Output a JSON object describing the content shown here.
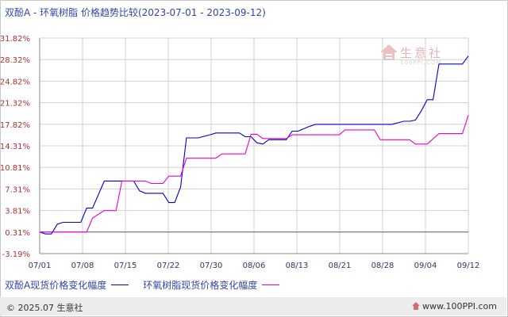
{
  "title": "双酚A - 环氧树脂 价格趋势比较(2023-07-01 - 2023-09-12)",
  "legend": [
    {
      "label": "双酚A现货价格变化幅度",
      "color": "#0000cc"
    },
    {
      "label": "环氧树脂现货价格变化幅度",
      "color": "#ee00cc"
    }
  ],
  "footer": {
    "copyright": "© 2025.07 生意社",
    "url": "www.100PPI.com"
  },
  "logo": {
    "name": "生意社",
    "sub": "100PPI.COM"
  },
  "colors": {
    "grid": "#d0d0d0",
    "axis": "#888888",
    "zero_line": "#666666"
  },
  "chart_data": {
    "type": "line",
    "title": "双酚A - 环氧树脂 价格趋势比较(2023-07-01 - 2023-09-12)",
    "xlabel": "",
    "ylabel": "",
    "x_tick_labels": [
      "07/01",
      "07/08",
      "07/15",
      "07/22",
      "07/30",
      "08/06",
      "08/13",
      "08/21",
      "08/28",
      "09/04",
      "09/12"
    ],
    "y_tick_labels": [
      "31.82%",
      "28.32%",
      "24.82%",
      "21.32%",
      "17.82%",
      "14.31%",
      "10.81%",
      "7.31%",
      "3.81%",
      "0.31%",
      "-3.19%"
    ],
    "y_ticks": [
      31.82,
      28.32,
      24.82,
      21.32,
      17.82,
      14.31,
      10.81,
      7.31,
      3.81,
      0.31,
      -3.19
    ],
    "xlim": [
      "2023-07-01",
      "2023-09-12"
    ],
    "ylim": [
      -3.19,
      31.82
    ],
    "grid": true,
    "legend_position": "bottom",
    "series": [
      {
        "name": "双酚A现货价格变化幅度",
        "color": "#0000cc",
        "points": [
          [
            "2023-07-01",
            0.31
          ],
          [
            "2023-07-02",
            0.0
          ],
          [
            "2023-07-03",
            0.0
          ],
          [
            "2023-07-04",
            1.6
          ],
          [
            "2023-07-05",
            1.9
          ],
          [
            "2023-07-07",
            1.9
          ],
          [
            "2023-07-08",
            1.9
          ],
          [
            "2023-07-09",
            4.2
          ],
          [
            "2023-07-10",
            4.2
          ],
          [
            "2023-07-12",
            8.6
          ],
          [
            "2023-07-15",
            8.6
          ],
          [
            "2023-07-17",
            8.6
          ],
          [
            "2023-07-18",
            7.0
          ],
          [
            "2023-07-19",
            6.6
          ],
          [
            "2023-07-22",
            6.6
          ],
          [
            "2023-07-23",
            5.1
          ],
          [
            "2023-07-24",
            5.1
          ],
          [
            "2023-07-25",
            7.6
          ],
          [
            "2023-07-26",
            15.6
          ],
          [
            "2023-07-28",
            15.6
          ],
          [
            "2023-07-30",
            16.1
          ],
          [
            "2023-07-31",
            16.4
          ],
          [
            "2023-08-04",
            16.4
          ],
          [
            "2023-08-05",
            15.8
          ],
          [
            "2023-08-06",
            15.8
          ],
          [
            "2023-08-07",
            14.8
          ],
          [
            "2023-08-08",
            14.6
          ],
          [
            "2023-08-09",
            15.3
          ],
          [
            "2023-08-12",
            15.3
          ],
          [
            "2023-08-13",
            16.7
          ],
          [
            "2023-08-14",
            16.7
          ],
          [
            "2023-08-16",
            17.5
          ],
          [
            "2023-08-17",
            17.8
          ],
          [
            "2023-08-22",
            17.8
          ],
          [
            "2023-08-28",
            17.8
          ],
          [
            "2023-08-30",
            17.8
          ],
          [
            "2023-09-01",
            18.3
          ],
          [
            "2023-09-02",
            18.3
          ],
          [
            "2023-09-03",
            18.5
          ],
          [
            "2023-09-04",
            20.0
          ],
          [
            "2023-09-05",
            21.8
          ],
          [
            "2023-09-06",
            21.8
          ],
          [
            "2023-09-07",
            27.6
          ],
          [
            "2023-09-11",
            27.6
          ],
          [
            "2023-09-12",
            28.9
          ]
        ]
      },
      {
        "name": "环氧树脂现货价格变化幅度",
        "color": "#ee00cc",
        "points": [
          [
            "2023-07-01",
            0.31
          ],
          [
            "2023-07-08",
            0.31
          ],
          [
            "2023-07-09",
            0.31
          ],
          [
            "2023-07-10",
            2.6
          ],
          [
            "2023-07-11",
            3.2
          ],
          [
            "2023-07-12",
            3.8
          ],
          [
            "2023-07-14",
            3.8
          ],
          [
            "2023-07-15",
            8.6
          ],
          [
            "2023-07-19",
            8.6
          ],
          [
            "2023-07-20",
            8.2
          ],
          [
            "2023-07-22",
            8.2
          ],
          [
            "2023-07-23",
            9.4
          ],
          [
            "2023-07-25",
            9.4
          ],
          [
            "2023-07-26",
            12.3
          ],
          [
            "2023-07-31",
            12.3
          ],
          [
            "2023-08-01",
            13.0
          ],
          [
            "2023-08-05",
            13.0
          ],
          [
            "2023-08-06",
            16.2
          ],
          [
            "2023-08-07",
            16.2
          ],
          [
            "2023-08-08",
            15.5
          ],
          [
            "2023-08-12",
            15.5
          ],
          [
            "2023-08-13",
            16.1
          ],
          [
            "2023-08-21",
            16.1
          ],
          [
            "2023-08-22",
            16.9
          ],
          [
            "2023-08-27",
            16.9
          ],
          [
            "2023-08-28",
            15.3
          ],
          [
            "2023-09-02",
            15.3
          ],
          [
            "2023-09-03",
            14.6
          ],
          [
            "2023-09-05",
            14.6
          ],
          [
            "2023-09-07",
            16.3
          ],
          [
            "2023-09-11",
            16.3
          ],
          [
            "2023-09-12",
            19.3
          ]
        ]
      }
    ]
  }
}
